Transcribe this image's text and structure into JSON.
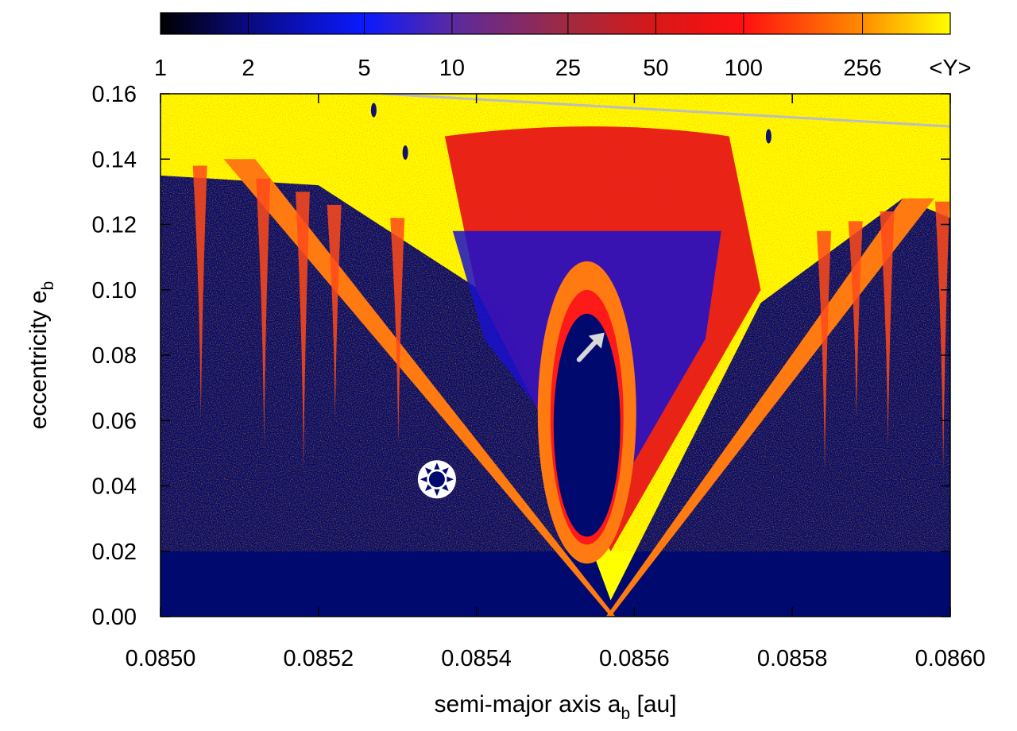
{
  "chart_data": {
    "type": "heatmap",
    "title": "",
    "xlabel": "semi-major axis a",
    "xlabel_sub": "b",
    "xlabel_unit": " [au]",
    "ylabel": "eccentricity e",
    "ylabel_sub": "b",
    "xlim": [
      0.085,
      0.086
    ],
    "ylim": [
      0.0,
      0.16
    ],
    "x_ticks": [
      0.085,
      0.0852,
      0.0854,
      0.0856,
      0.0858,
      0.086
    ],
    "x_tick_labels": [
      "0.0850",
      "0.0852",
      "0.0854",
      "0.0856",
      "0.0858",
      "0.0860"
    ],
    "y_ticks": [
      0.0,
      0.02,
      0.04,
      0.06,
      0.08,
      0.1,
      0.12,
      0.14,
      0.16
    ],
    "y_tick_labels": [
      "0.00",
      "0.02",
      "0.04",
      "0.06",
      "0.08",
      "0.10",
      "0.12",
      "0.14",
      "0.16"
    ],
    "colorbar": {
      "label": "<Y>",
      "scale": "log",
      "range": [
        1,
        512
      ],
      "ticks": [
        1,
        2,
        5,
        10,
        25,
        50,
        100,
        256
      ],
      "tick_labels": [
        "1",
        "2",
        "5",
        "10",
        "25",
        "50",
        "100",
        "256"
      ],
      "stops": [
        {
          "value": 1,
          "color": "#000000"
        },
        {
          "value": 2,
          "color": "#0a0a80"
        },
        {
          "value": 5,
          "color": "#0a1aff"
        },
        {
          "value": 10,
          "color": "#5a2aa0"
        },
        {
          "value": 25,
          "color": "#a02a40"
        },
        {
          "value": 50,
          "color": "#d81818"
        },
        {
          "value": 100,
          "color": "#ff1010"
        },
        {
          "value": 256,
          "color": "#ff8c00"
        },
        {
          "value": 512,
          "color": "#ffff00"
        }
      ]
    },
    "regions": {
      "background": "#000a6e",
      "chaotic_top": "#ffff00",
      "resonance_edge": "#ff7a10",
      "resonance_core": "#ff1a1a",
      "inner_blue": "#1a10cc"
    },
    "features": {
      "resonance_center_x": 0.08557,
      "v_apex_e": 0.0,
      "v_edge_at_e016_left": 0.08508,
      "v_edge_at_e016_right": 0.08604,
      "ellipse_center": [
        0.08554,
        0.061
      ],
      "ellipse_e_range": [
        0.024,
        0.1
      ],
      "collision_line": [
        [
          0.08528,
          0.16
        ],
        [
          0.086,
          0.15
        ]
      ],
      "marker_symbol_at": [
        0.08535,
        0.042
      ],
      "arrow_at": [
        0.08554,
        0.083
      ]
    }
  }
}
